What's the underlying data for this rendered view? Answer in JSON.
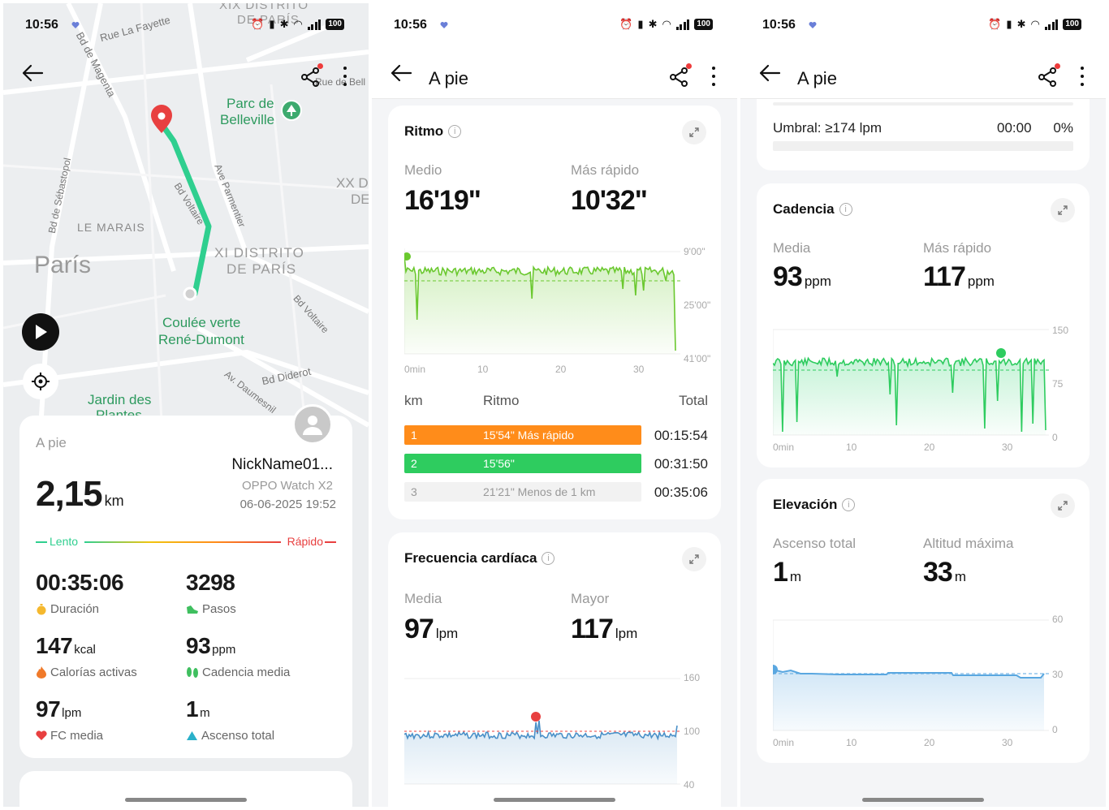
{
  "status": {
    "time": "10:56",
    "battery": "100"
  },
  "screen1": {
    "map": {
      "labels": [
        "Rue La Fayette",
        "Bd de Magenta",
        "Parc de",
        "Belleville",
        "Bd de Sébastopol",
        "LE MARAIS",
        "París",
        "XI DISTRITO",
        "DE PARÍS",
        "Bd Voltaire",
        "Ave Parmentier",
        "Bd Voltaire",
        "Coulée verte",
        "René-Dumont",
        "Av. Daumesnil",
        "Bd Diderot",
        "Jardin des",
        "Plantes",
        "XX D",
        "DE",
        "XIX DISTRITO",
        "DE PARÍS",
        "Rue de Bell"
      ]
    },
    "summary": {
      "activity": "A pie",
      "distance": "2,15",
      "distance_unit": "km",
      "nickname": "NickName01...",
      "device": "OPPO Watch X2",
      "datetime": "06-06-2025 19:52",
      "slow_label": "Lento",
      "fast_label": "Rápido",
      "stats": [
        {
          "value": "00:35:06",
          "unit": "",
          "label": "Duración",
          "icon": "stopwatch-icon"
        },
        {
          "value": "3298",
          "unit": "",
          "label": "Pasos",
          "icon": "shoe-icon"
        },
        {
          "value": "147",
          "unit": "kcal",
          "label": "Calorías activas",
          "icon": "flame-icon"
        },
        {
          "value": "93",
          "unit": "ppm",
          "label": "Cadencia media",
          "icon": "footprints-icon"
        },
        {
          "value": "97",
          "unit": "lpm",
          "label": "FC media",
          "icon": "heart-icon"
        },
        {
          "value": "1",
          "unit": "m",
          "label": "Ascenso total",
          "icon": "mountain-icon"
        }
      ]
    }
  },
  "screen2": {
    "title": "A pie",
    "pace": {
      "title": "Ritmo",
      "avg_label": "Medio",
      "avg_value": "16'19\"",
      "fast_label": "Más rápido",
      "fast_value": "10'32\"",
      "y_ticks": [
        "9'00\"",
        "25'00\"",
        "41'00\""
      ],
      "x_ticks": [
        "0min",
        "10",
        "20",
        "30"
      ],
      "table_headers": [
        "km",
        "Ritmo",
        "Total"
      ],
      "laps": [
        {
          "km": "1",
          "pace": "15'54\" Más rápido",
          "total": "00:15:54",
          "color": "#ff8c1a"
        },
        {
          "km": "2",
          "pace": "15'56\"",
          "total": "00:31:50",
          "color": "#2ecc5f"
        },
        {
          "km": "3",
          "pace": "21'21\" Menos de 1 km",
          "total": "00:35:06",
          "color": "#f2f2f2"
        }
      ]
    },
    "heart": {
      "title": "Frecuencia cardíaca",
      "avg_label": "Media",
      "avg_value": "97",
      "avg_unit": "lpm",
      "max_label": "Mayor",
      "max_value": "117",
      "max_unit": "lpm",
      "y_ticks": [
        "160",
        "100",
        "40"
      ]
    }
  },
  "screen3": {
    "title": "A pie",
    "threshold": {
      "label": "Umbral: ≥174 lpm",
      "time": "00:00",
      "percent": "0%"
    },
    "cadence": {
      "title": "Cadencia",
      "avg_label": "Media",
      "avg_value": "93",
      "avg_unit": "ppm",
      "fast_label": "Más rápido",
      "fast_value": "117",
      "fast_unit": "ppm",
      "y_ticks": [
        "150",
        "75",
        "0"
      ],
      "x_ticks": [
        "0min",
        "10",
        "20",
        "30"
      ]
    },
    "elevation": {
      "title": "Elevación",
      "asc_label": "Ascenso total",
      "asc_value": "1",
      "asc_unit": "m",
      "max_label": "Altitud máxima",
      "max_value": "33",
      "max_unit": "m",
      "y_ticks": [
        "60",
        "30",
        "0"
      ],
      "x_ticks": [
        "0min",
        "10",
        "20",
        "30"
      ]
    }
  },
  "colors": {
    "route": "#2fcf8f",
    "pace_green": "#6ac82e",
    "heart_blue": "#4a90c8",
    "elev_blue": "#5aa7e0",
    "pin_red": "#e84040"
  }
}
